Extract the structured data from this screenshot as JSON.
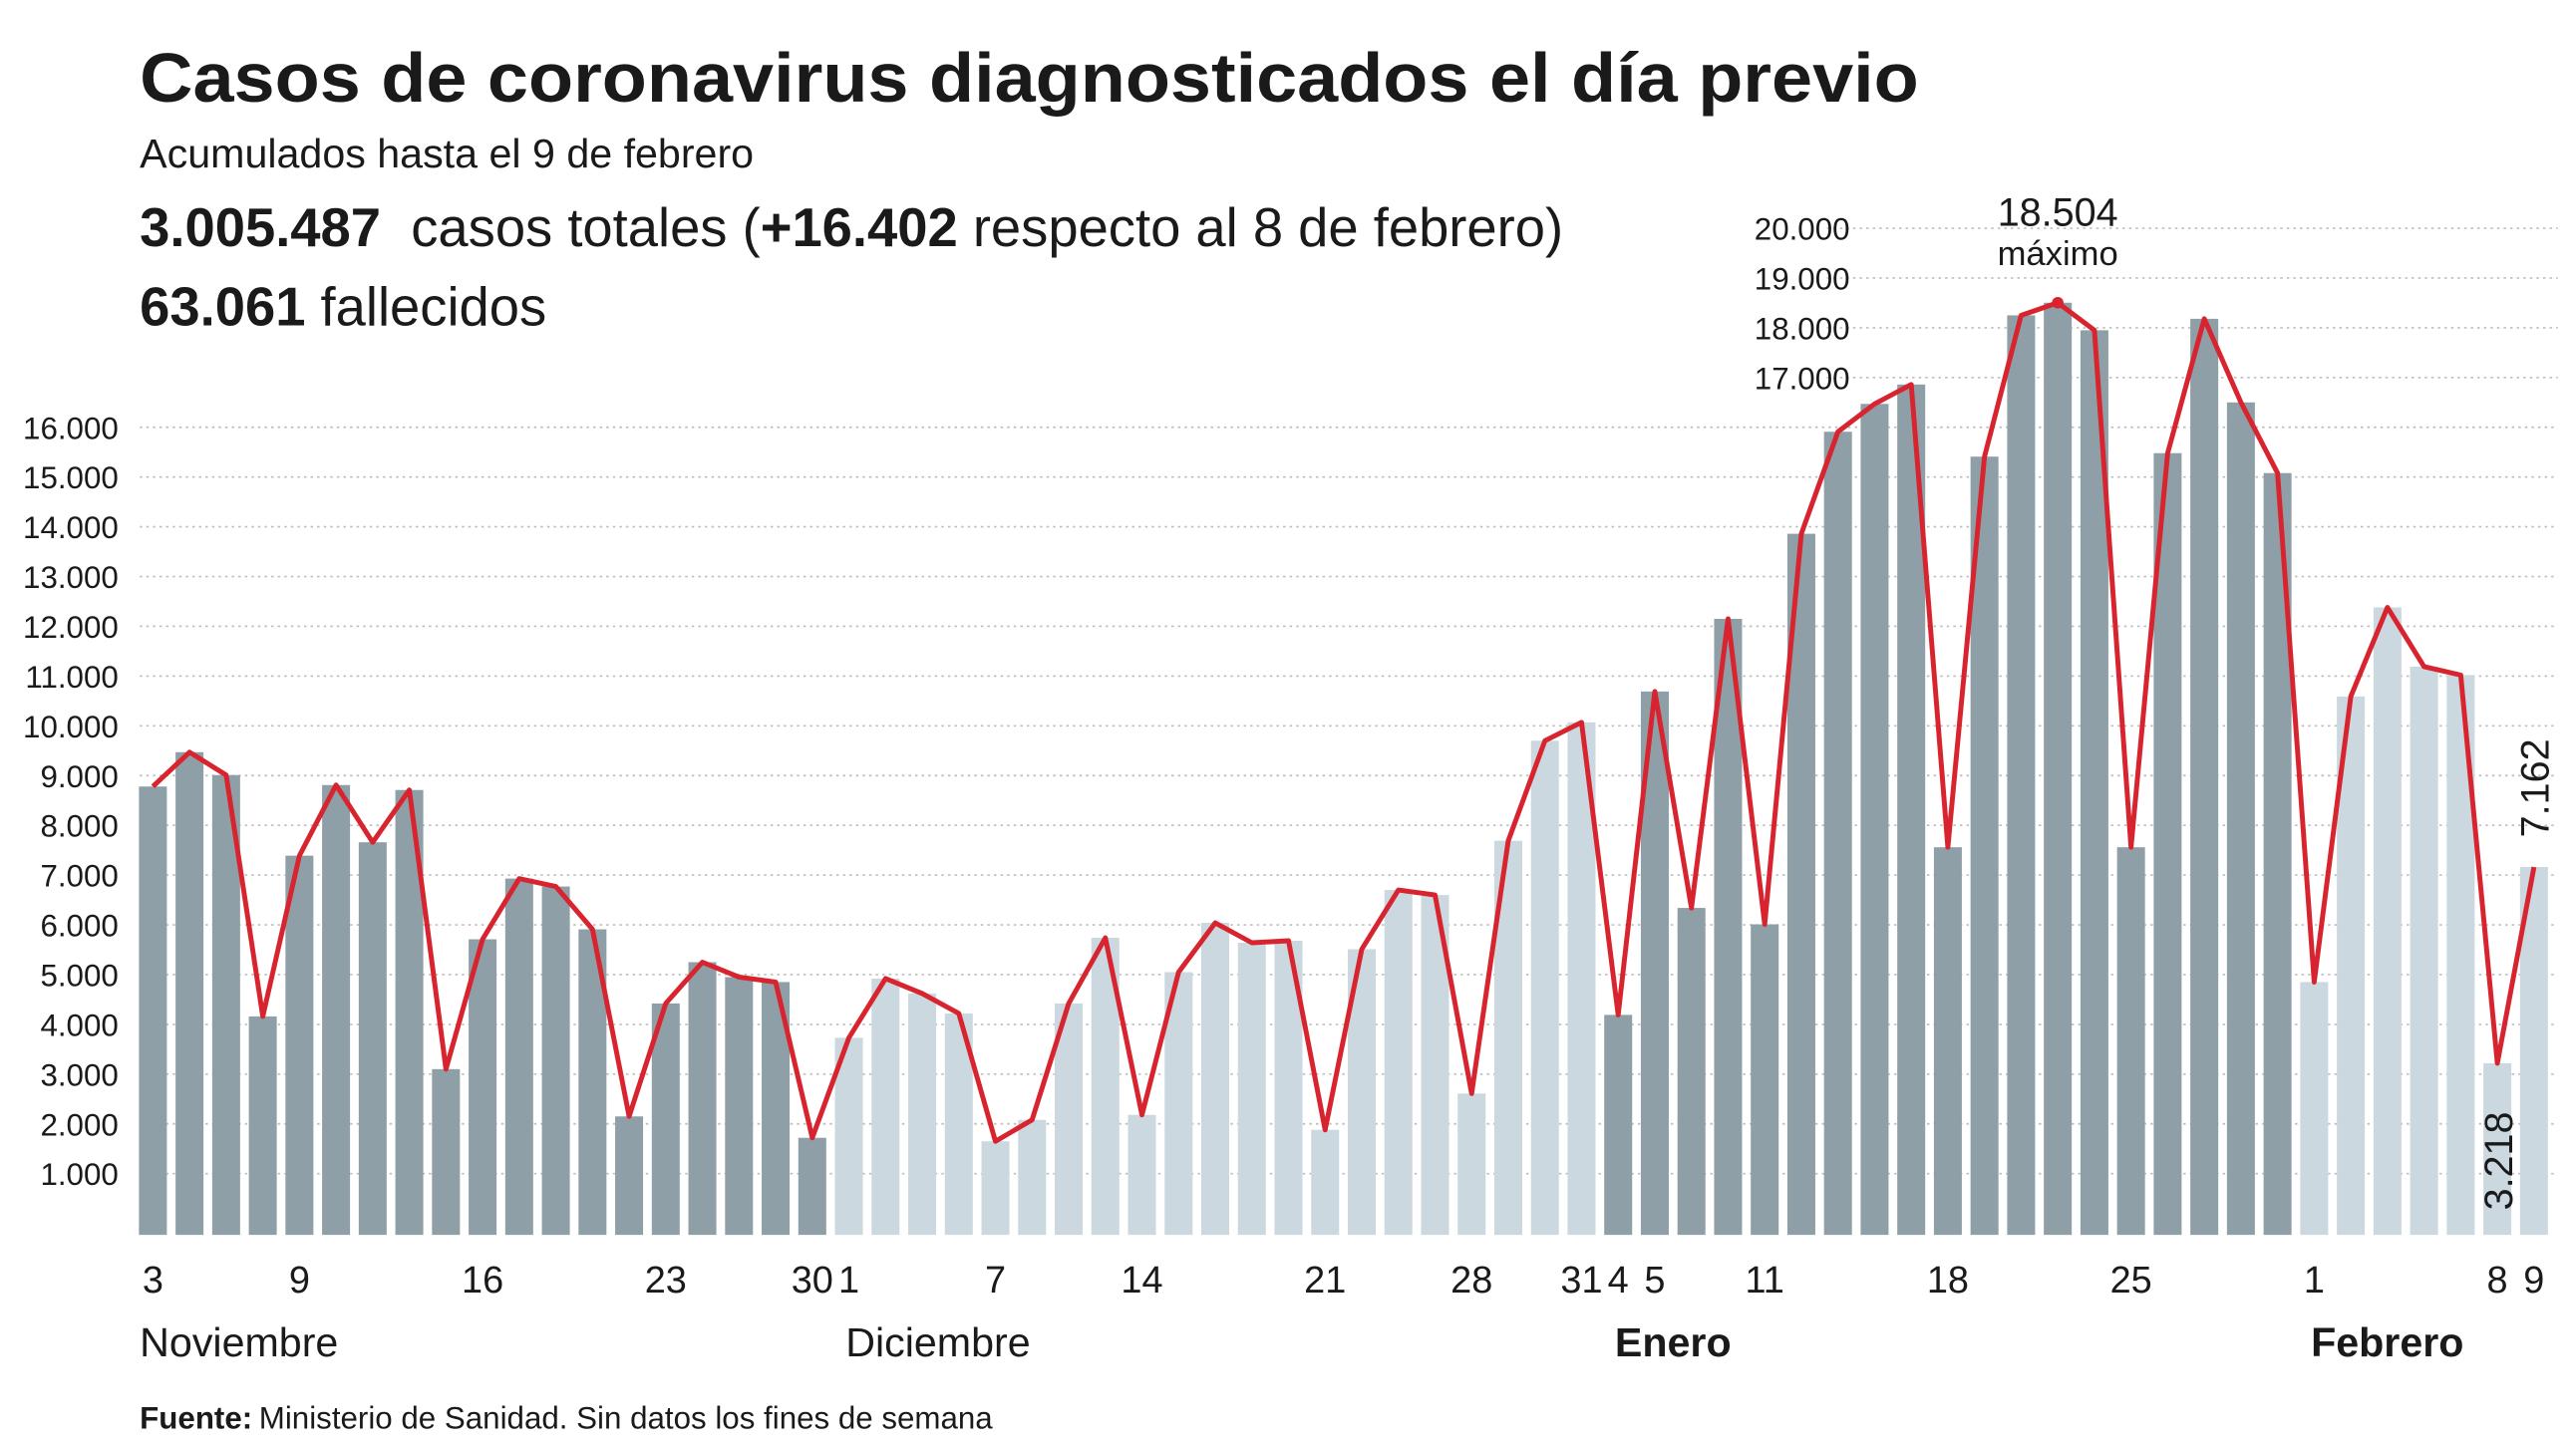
{
  "header": {
    "title": "Casos de coronavirus diagnosticados el día previo",
    "subtitle": "Acumulados hasta el 9 de febrero",
    "summary": [
      [
        {
          "text": "3.005.487",
          "bold": true
        },
        {
          "text": "  casos totales (",
          "bold": false
        },
        {
          "text": "+16.402",
          "bold": true
        },
        {
          "text": " respecto al 8 de febrero)",
          "bold": false
        }
      ],
      [
        {
          "text": "63.061",
          "bold": true
        },
        {
          "text": " fallecidos",
          "bold": false
        }
      ]
    ]
  },
  "footer": {
    "label": "Fuente:",
    "text": "Ministerio de Sanidad. Sin datos los fines de semana"
  },
  "chart_data": {
    "type": "bar_line",
    "categories": [
      "3",
      null,
      null,
      null,
      "9",
      null,
      null,
      null,
      null,
      "16",
      null,
      null,
      null,
      null,
      "23",
      null,
      null,
      null,
      "30",
      "1",
      null,
      null,
      null,
      "7",
      null,
      null,
      null,
      "14",
      null,
      null,
      null,
      null,
      "21",
      null,
      null,
      null,
      "28",
      null,
      null,
      "31",
      "4",
      "5",
      null,
      null,
      "11",
      null,
      null,
      null,
      null,
      "18",
      null,
      null,
      null,
      null,
      "25",
      null,
      null,
      null,
      null,
      "1",
      null,
      null,
      null,
      null,
      "8",
      "9"
    ],
    "values": [
      8780,
      9470,
      9010,
      4160,
      7390,
      8810,
      7660,
      8710,
      3100,
      5710,
      6930,
      6770,
      5910,
      2150,
      4420,
      5250,
      4950,
      4850,
      1720,
      3730,
      4920,
      4620,
      4220,
      1650,
      2080,
      4420,
      5740,
      2180,
      5050,
      6040,
      5640,
      5680,
      1880,
      5510,
      6700,
      6600,
      2610,
      7690,
      9700,
      10070,
      4190,
      10690,
      6340,
      12150,
      6010,
      13860,
      15910,
      16470,
      16860,
      7560,
      15410,
      18250,
      18504,
      17950,
      7560,
      15480,
      18180,
      16500,
      15080,
      4850,
      10590,
      12380,
      11190,
      11020,
      3218,
      7162
    ],
    "value_labels": [
      null,
      null,
      null,
      null,
      null,
      null,
      null,
      null,
      null,
      null,
      null,
      null,
      null,
      null,
      null,
      null,
      null,
      null,
      null,
      null,
      null,
      null,
      null,
      null,
      null,
      null,
      null,
      null,
      null,
      null,
      null,
      null,
      null,
      null,
      null,
      null,
      null,
      null,
      null,
      null,
      null,
      null,
      null,
      null,
      null,
      null,
      null,
      null,
      null,
      null,
      null,
      null,
      "18.504",
      null,
      null,
      null,
      null,
      null,
      null,
      null,
      null,
      null,
      null,
      null,
      "3.218",
      "7.162"
    ],
    "max_annotation": "máximo",
    "line_color": "#d7242f",
    "months": [
      {
        "name": "Noviembre",
        "first": 0,
        "bold": false,
        "bar_color": "#8f9fa7"
      },
      {
        "name": "Diciembre",
        "first": 19,
        "bold": false,
        "bar_color": "#cbd8df"
      },
      {
        "name": "Enero",
        "first": 40,
        "bold": true,
        "bar_color": "#8f9fa7"
      },
      {
        "name": "Febrero",
        "first": 59,
        "bold": true,
        "bar_color": "#cbd8df"
      }
    ],
    "ylim": [
      0,
      20000
    ],
    "yticks": [
      {
        "value": 1000,
        "label": "1.000"
      },
      {
        "value": 2000,
        "label": "2.000"
      },
      {
        "value": 3000,
        "label": "3.000"
      },
      {
        "value": 4000,
        "label": "4.000"
      },
      {
        "value": 5000,
        "label": "5.000"
      },
      {
        "value": 6000,
        "label": "6.000"
      },
      {
        "value": 7000,
        "label": "7.000"
      },
      {
        "value": 8000,
        "label": "8.000"
      },
      {
        "value": 9000,
        "label": "9.000"
      },
      {
        "value": 10000,
        "label": "10.000"
      },
      {
        "value": 11000,
        "label": "11.000"
      },
      {
        "value": 12000,
        "label": "12.000"
      },
      {
        "value": 13000,
        "label": "13.000"
      },
      {
        "value": 14000,
        "label": "14.000"
      },
      {
        "value": 15000,
        "label": "15.000"
      },
      {
        "value": 16000,
        "label": "16.000"
      },
      {
        "value": 17000,
        "label": "17.000"
      },
      {
        "value": 18000,
        "label": "18.000"
      },
      {
        "value": 19000,
        "label": "19.000"
      },
      {
        "value": 20000,
        "label": "20.000"
      }
    ],
    "grid": true
  }
}
